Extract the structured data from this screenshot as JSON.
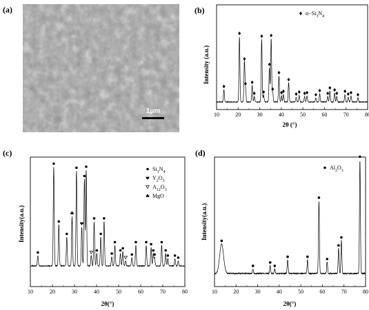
{
  "sem": {
    "label": "(a)",
    "scale_text": "1μm"
  },
  "chart_data": [
    {
      "label": "(b)",
      "type": "line",
      "title": "",
      "xlabel": "2θ (°)",
      "ylabel": "Intensity (a.u.)",
      "xlim": [
        10,
        80
      ],
      "xticks": [
        10,
        20,
        30,
        40,
        50,
        60,
        70,
        80
      ],
      "legend": [
        {
          "symbol": "diamond",
          "text": "α−Si3N4"
        }
      ],
      "legend_position": "top-right",
      "series": [
        {
          "peaks": [
            {
              "x": 13.4,
              "y": 0.18,
              "m": "diamond"
            },
            {
              "x": 20.6,
              "y": 0.95,
              "m": "diamond"
            },
            {
              "x": 22.9,
              "y": 0.58,
              "m": "diamond"
            },
            {
              "x": 23.4,
              "y": 0.22,
              "m": "diamond"
            },
            {
              "x": 26.5,
              "y": 0.24,
              "m": "diamond"
            },
            {
              "x": 27.5,
              "y": 0.08,
              "m": "diamond"
            },
            {
              "x": 30.9,
              "y": 0.91,
              "m": "diamond"
            },
            {
              "x": 31.8,
              "y": 0.1,
              "m": "diamond"
            },
            {
              "x": 34.5,
              "y": 0.5,
              "m": "diamond"
            },
            {
              "x": 35.3,
              "y": 0.92,
              "m": "diamond"
            },
            {
              "x": 36.0,
              "y": 0.14,
              "m": "diamond"
            },
            {
              "x": 38.9,
              "y": 0.38,
              "m": "diamond"
            },
            {
              "x": 40.1,
              "y": 0.09,
              "m": "diamond"
            },
            {
              "x": 41.0,
              "y": 0.11,
              "m": "diamond"
            },
            {
              "x": 43.4,
              "y": 0.28,
              "m": "diamond"
            },
            {
              "x": 46.9,
              "y": 0.07,
              "m": "diamond"
            },
            {
              "x": 48.3,
              "y": 0.1,
              "m": "diamond"
            },
            {
              "x": 50.8,
              "y": 0.08,
              "m": "diamond"
            },
            {
              "x": 51.9,
              "y": 0.09,
              "m": "diamond"
            },
            {
              "x": 56.0,
              "y": 0.06,
              "m": "diamond"
            },
            {
              "x": 57.8,
              "y": 0.12,
              "m": "diamond"
            },
            {
              "x": 61.5,
              "y": 0.08,
              "m": "diamond"
            },
            {
              "x": 62.5,
              "y": 0.16,
              "m": "diamond"
            },
            {
              "x": 64.7,
              "y": 0.13,
              "m": "diamond"
            },
            {
              "x": 65.7,
              "y": 0.08,
              "m": "diamond"
            },
            {
              "x": 69.5,
              "y": 0.11,
              "m": "diamond"
            },
            {
              "x": 71.0,
              "y": 0.07,
              "m": "diamond"
            },
            {
              "x": 72.3,
              "y": 0.09,
              "m": "diamond"
            },
            {
              "x": 75.5,
              "y": 0.06,
              "m": "diamond"
            }
          ]
        }
      ]
    },
    {
      "label": "(c)",
      "type": "line",
      "title": "",
      "xlabel": "2θ(°)",
      "ylabel": "Intensity(a.u.)",
      "xlim": [
        10,
        80
      ],
      "xticks": [
        10,
        20,
        30,
        40,
        50,
        60,
        70,
        80
      ],
      "legend": [
        {
          "symbol": "dot",
          "text": "Si3N4"
        },
        {
          "symbol": "heart",
          "text": "Y2O3"
        },
        {
          "symbol": "triangle",
          "text": "A12O3"
        },
        {
          "symbol": "club",
          "text": "MgO"
        }
      ],
      "legend_position": "top-right",
      "series": [
        {
          "peaks": [
            {
              "x": 13.4,
              "y": 0.1,
              "m": "dot"
            },
            {
              "x": 20.6,
              "y": 0.96,
              "m": "dot"
            },
            {
              "x": 22.9,
              "y": 0.4,
              "m": "dot"
            },
            {
              "x": 26.5,
              "y": 0.28,
              "m": "dot"
            },
            {
              "x": 28.9,
              "y": 0.48,
              "m": "club"
            },
            {
              "x": 30.9,
              "y": 0.92,
              "m": "dot"
            },
            {
              "x": 33.3,
              "y": 0.38,
              "m": "heart"
            },
            {
              "x": 34.5,
              "y": 0.84,
              "m": "dot"
            },
            {
              "x": 35.3,
              "y": 0.93,
              "m": "dot"
            },
            {
              "x": 37.6,
              "y": 0.1,
              "m": "triangle"
            },
            {
              "x": 38.9,
              "y": 0.43,
              "m": "dot"
            },
            {
              "x": 40.1,
              "y": 0.12,
              "m": "dot"
            },
            {
              "x": 41.9,
              "y": 0.28,
              "m": "dot"
            },
            {
              "x": 43.4,
              "y": 0.43,
              "m": "dot"
            },
            {
              "x": 46.9,
              "y": 0.09,
              "m": "dot"
            },
            {
              "x": 48.3,
              "y": 0.2,
              "m": "dot"
            },
            {
              "x": 50.8,
              "y": 0.12,
              "m": "dot"
            },
            {
              "x": 51.9,
              "y": 0.14,
              "m": "dot"
            },
            {
              "x": 53.2,
              "y": 0.05,
              "m": "triangle"
            },
            {
              "x": 56.0,
              "y": 0.08,
              "m": "dot"
            },
            {
              "x": 57.8,
              "y": 0.2,
              "m": "dot"
            },
            {
              "x": 62.5,
              "y": 0.2,
              "m": "dot"
            },
            {
              "x": 64.7,
              "y": 0.18,
              "m": "dot"
            },
            {
              "x": 65.7,
              "y": 0.12,
              "m": "dot"
            },
            {
              "x": 66.3,
              "y": 0.08,
              "m": "dot"
            },
            {
              "x": 69.5,
              "y": 0.2,
              "m": "dot"
            },
            {
              "x": 71.3,
              "y": 0.12,
              "m": "dot"
            },
            {
              "x": 72.3,
              "y": 0.07,
              "m": "dot"
            },
            {
              "x": 75.5,
              "y": 0.07,
              "m": "dot"
            },
            {
              "x": 77.0,
              "y": 0.05,
              "m": "dot"
            }
          ]
        }
      ]
    },
    {
      "label": "(d)",
      "type": "line",
      "title": "",
      "xlabel": "2θ(°)",
      "ylabel": "Intensity(a.u.)",
      "xlim": [
        10,
        80
      ],
      "xticks": [
        10,
        20,
        30,
        40,
        50,
        60,
        70,
        80
      ],
      "legend": [
        {
          "symbol": "dot",
          "text": "Al2O3"
        }
      ],
      "legend_position": "top-left",
      "series": [
        {
          "peaks": [
            {
              "x": 13.3,
              "y": 0.26,
              "m": "dot",
              "broad": true
            },
            {
              "x": 27.8,
              "y": 0.04,
              "m": "dot"
            },
            {
              "x": 35.8,
              "y": 0.07,
              "m": "dot"
            },
            {
              "x": 37.9,
              "y": 0.04,
              "m": "dot"
            },
            {
              "x": 43.9,
              "y": 0.12,
              "m": "dot"
            },
            {
              "x": 53.1,
              "y": 0.12,
              "m": "dot"
            },
            {
              "x": 58.4,
              "y": 0.64,
              "m": "dot"
            },
            {
              "x": 62.2,
              "y": 0.1,
              "m": "dot"
            },
            {
              "x": 67.5,
              "y": 0.22,
              "m": "dot"
            },
            {
              "x": 68.8,
              "y": 0.29,
              "m": "dot"
            },
            {
              "x": 77.4,
              "y": 1.0,
              "m": "dot"
            }
          ]
        }
      ]
    }
  ]
}
